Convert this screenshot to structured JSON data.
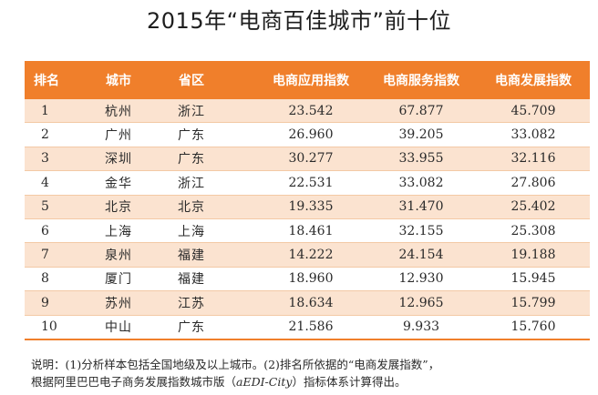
{
  "title": "2015年“电商百佳城市”前十位",
  "table": {
    "headers": [
      "排名",
      "城市",
      "省区",
      "电商应用指数",
      "电商服务指数",
      "电商发展指数"
    ],
    "rows": [
      [
        "1",
        "杭州",
        "浙江",
        "23.542",
        "67.877",
        "45.709"
      ],
      [
        "2",
        "广州",
        "广东",
        "26.960",
        "39.205",
        "33.082"
      ],
      [
        "3",
        "深圳",
        "广东",
        "30.277",
        "33.955",
        "32.116"
      ],
      [
        "4",
        "金华",
        "浙江",
        "22.531",
        "33.082",
        "27.806"
      ],
      [
        "5",
        "北京",
        "北京",
        "19.335",
        "31.470",
        "25.402"
      ],
      [
        "6",
        "上海",
        "上海",
        "18.461",
        "32.155",
        "25.308"
      ],
      [
        "7",
        "泉州",
        "福建",
        "14.222",
        "24.154",
        "19.188"
      ],
      [
        "8",
        "厦门",
        "福建",
        "18.960",
        "12.930",
        "15.945"
      ],
      [
        "9",
        "苏州",
        "江苏",
        "18.634",
        "12.965",
        "15.799"
      ],
      [
        "10",
        "中山",
        "广东",
        "21.586",
        "9.933",
        "15.760"
      ]
    ]
  },
  "note": {
    "line1": "说明：(1)分析样本包括全国地级及以上城市。(2)排名所依据的“电商发展指数”，",
    "line2_pre": "根据阿里巴巴电子商务发展指数城市版（",
    "line2_italic": "aEDI-City",
    "line2_post": "）指标体系计算得出。"
  },
  "colors": {
    "header_bg": "#f07f2b",
    "stripe_bg": "#fbe3d0"
  }
}
